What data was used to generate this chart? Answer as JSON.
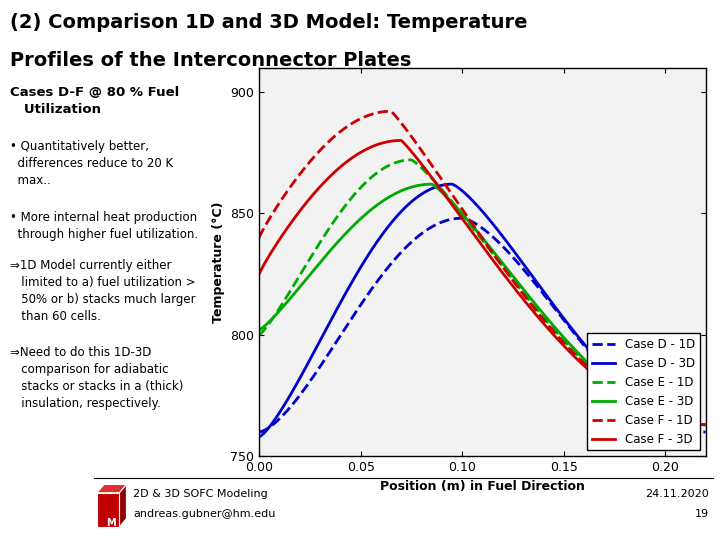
{
  "title_line1": "(2) Comparison 1D and 3D Model: Temperature",
  "title_line2": "Profiles of the Interconnector Plates",
  "left_header": "Cases D-F @ 80 % Fuel\n   Utilization",
  "bullet1": "• Quantitatively better,\n  differences reduce to 20 K\n  max..",
  "bullet2": "• More internal heat production\n  through higher fuel utilization.",
  "arrow1": "⇒1D Model currently either\n   limited to a) fuel utilization >\n   50% or b) stacks much larger\n   than 60 cells.",
  "arrow2": "⇒Need to do this 1D-3D\n   comparison for adiabatic\n   stacks or stacks in a (thick)\n   insulation, respectively.",
  "xlabel": "Position (m) in Fuel Direction",
  "ylabel": "Temperature (°C)",
  "xlim": [
    0,
    0.22
  ],
  "ylim": [
    750,
    910
  ],
  "yticks": [
    750,
    800,
    850,
    900
  ],
  "xticks": [
    0,
    0.05,
    0.1,
    0.15,
    0.2
  ],
  "color_D": "#0000CC",
  "color_E": "#00AA00",
  "color_F": "#CC0000",
  "footer_text1": "2D & 3D SOFC Modeling",
  "footer_text2": "andreas.gubner@hm.edu",
  "footer_date": "24.11.2020",
  "footer_page": "19",
  "bg_color": "#FFFFFF"
}
